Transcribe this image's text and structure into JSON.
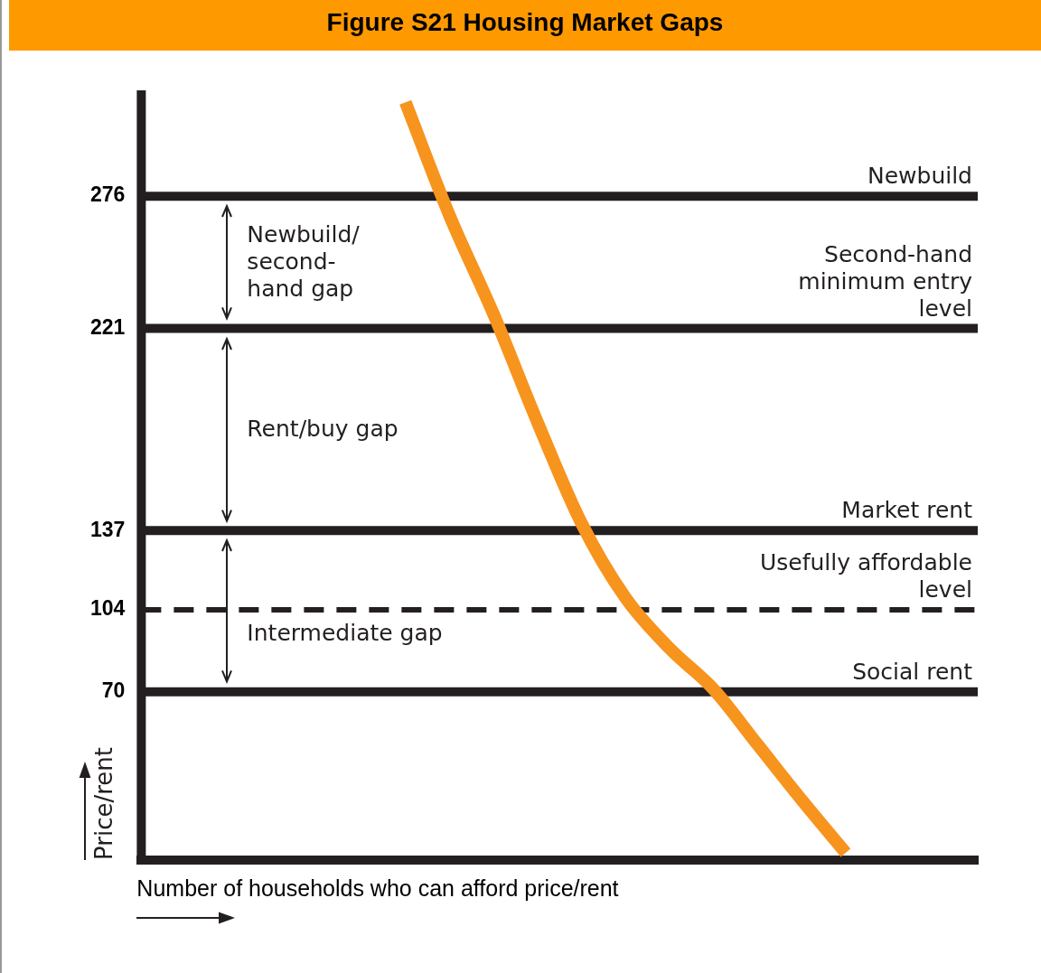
{
  "chart_data": {
    "type": "line",
    "title": "Figure S21 Housing Market Gaps",
    "xlabel": "Number of households who can afford price/rent",
    "ylabel": "Price/rent",
    "categories": [
      null,
      null,
      null,
      null,
      null,
      null,
      null,
      null,
      null,
      null,
      null,
      null,
      null,
      null,
      null,
      null,
      null,
      null,
      null,
      null
    ],
    "series": [
      {
        "color": "#f7941d",
        "values": [
          null,
          null,
          null,
          null,
          null,
          null,
          315,
          268,
          227,
          182,
          140,
          109,
          88,
          71,
          48,
          25,
          3,
          null,
          null,
          null
        ]
      }
    ],
    "ylim": [
      0,
      320
    ],
    "yticks": [
      70,
      104,
      137,
      221,
      276
    ],
    "tick_labels": "y",
    "grid": false,
    "legend": false,
    "marker": "none",
    "ref_lines": [
      {
        "axis": "y",
        "value": 276,
        "label": "Newbuild",
        "color": "#231f20"
      },
      {
        "axis": "y",
        "value": 221,
        "label": "Second-hand minimum entry level",
        "color": "#231f20"
      },
      {
        "axis": "y",
        "value": 137,
        "label": "Market rent",
        "color": "#231f20"
      },
      {
        "axis": "y",
        "value": 104,
        "label": "Usefully affordable level",
        "color": "#231f20",
        "line_style": "dashed"
      },
      {
        "axis": "y",
        "value": 70,
        "label": "Social rent",
        "color": "#231f20"
      }
    ],
    "annotations": [
      "Newbuild/ second- hand gap",
      "Rent/buy gap",
      "Intermediate gap"
    ]
  }
}
